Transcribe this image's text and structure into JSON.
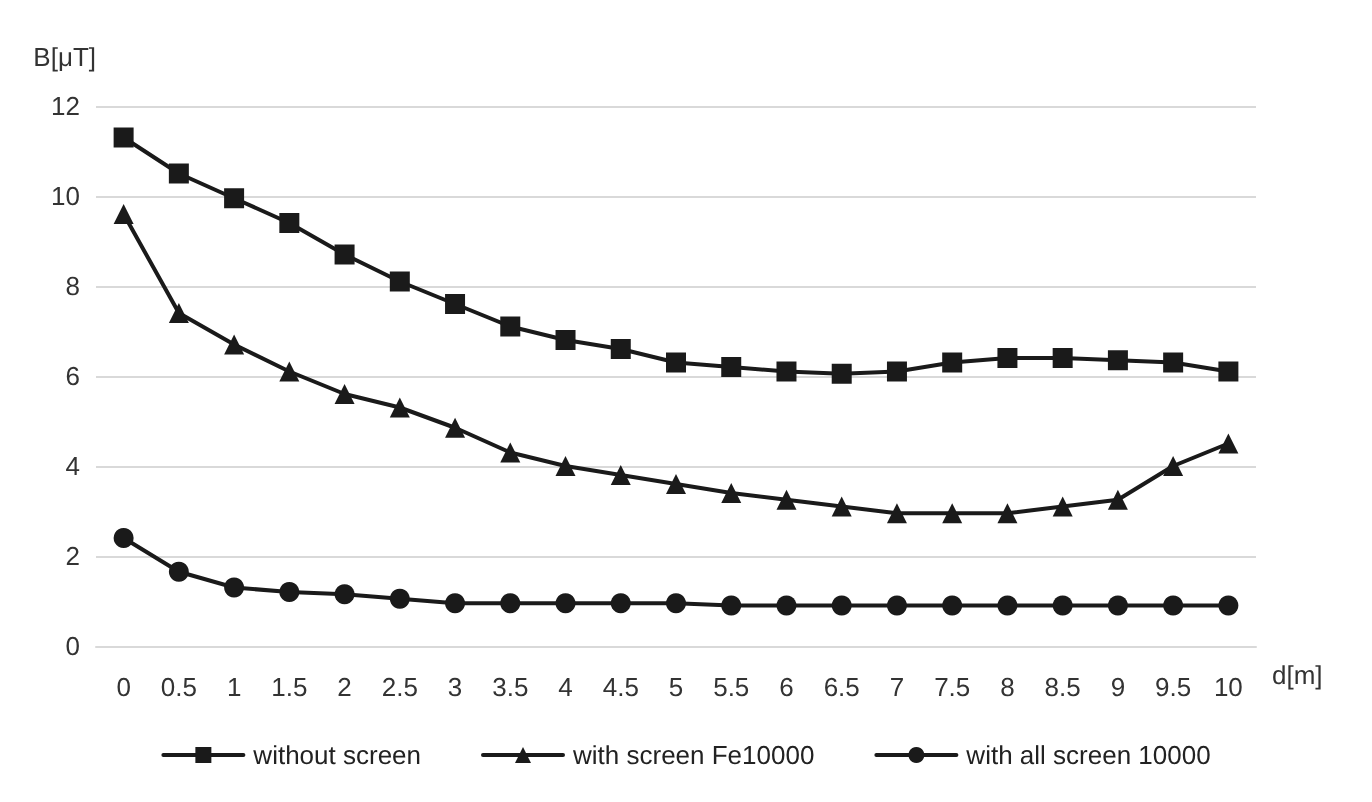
{
  "chart_data": {
    "type": "line",
    "xlabel": "d[m]",
    "ylabel": "B[μT]",
    "categories": [
      "0",
      "0.5",
      "1",
      "1.5",
      "2",
      "2.5",
      "3",
      "3.5",
      "4",
      "4.5",
      "5",
      "5.5",
      "6",
      "6.5",
      "7",
      "7.5",
      "8",
      "8.5",
      "9",
      "9.5",
      "10"
    ],
    "series": [
      {
        "name": "without screen",
        "color": "#1a1a1a",
        "marker": "square",
        "values": [
          11.3,
          10.5,
          9.95,
          9.4,
          8.7,
          8.1,
          7.6,
          7.1,
          6.8,
          6.6,
          6.3,
          6.2,
          6.1,
          6.05,
          6.1,
          6.3,
          6.4,
          6.4,
          6.35,
          6.3,
          6.1
        ]
      },
      {
        "name": "with screen Fe10000",
        "color": "#1a1a1a",
        "marker": "triangle",
        "values": [
          9.6,
          7.4,
          6.7,
          6.1,
          5.6,
          5.3,
          4.85,
          4.3,
          4.0,
          3.8,
          3.6,
          3.4,
          3.25,
          3.1,
          2.95,
          2.95,
          2.95,
          3.1,
          3.25,
          4.0,
          4.5
        ]
      },
      {
        "name": "with all screen 10000",
        "color": "#1a1a1a",
        "marker": "circle",
        "values": [
          2.4,
          1.65,
          1.3,
          1.2,
          1.15,
          1.05,
          0.95,
          0.95,
          0.95,
          0.95,
          0.95,
          0.9,
          0.9,
          0.9,
          0.9,
          0.9,
          0.9,
          0.9,
          0.9,
          0.9,
          0.9
        ]
      }
    ],
    "ylim": [
      0,
      12
    ],
    "yticks": [
      0,
      2,
      4,
      6,
      8,
      10,
      12
    ],
    "grid": "y",
    "legend": "bottom",
    "line_style": "solid"
  }
}
